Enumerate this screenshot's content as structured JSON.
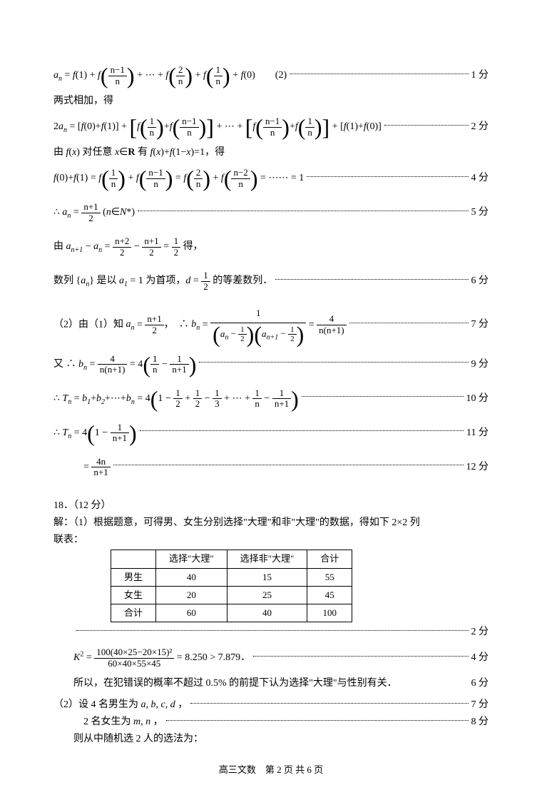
{
  "line1": {
    "pre": "aₙ = f(1) + f",
    "f1n": "n−1",
    "f1d": "n",
    "mid1": " + ⋯ + f",
    "f2n": "2",
    "f2d": "n",
    "mid2": " + f",
    "f3n": "1",
    "f3d": "n",
    "post": " + f(0)　　(2)",
    "score": "1 分"
  },
  "line2": "两式相加，得",
  "line3": {
    "pre": "2aₙ = [f(0)+f(1)] + ",
    "b1a_n": "1",
    "b1a_d": "n",
    "b1b_n": "n−1",
    "b1b_d": "n",
    "mid": " + ⋯ + ",
    "b2a_n": "n−1",
    "b2a_d": "n",
    "b2b_n": "1",
    "b2b_d": "n",
    "post": " + [f(1)+f(0)]",
    "score": "2 分"
  },
  "line4": {
    "pre": "由 f(x) 对任意 x∈",
    "bold": "R",
    "post": " 有 f(x)+f(1−x)=1，得"
  },
  "line5": {
    "pre": "f(0)+f(1) = f",
    "a_n": "1",
    "a_d": "n",
    "p1": " + f",
    "b_n": "n−1",
    "b_d": "n",
    "p2": " = f",
    "c_n": "2",
    "c_d": "n",
    "p3": " + f",
    "d_n": "n−2",
    "d_d": "n",
    "post": " = ⋯⋯ = 1",
    "score": "4 分"
  },
  "line6": {
    "pre": "∴ aₙ = ",
    "n": "n+1",
    "d": "2",
    "post": " (n∈N*)",
    "score": "5 分"
  },
  "line7": {
    "pre": "由 aₙ₊₁ − aₙ = ",
    "a_n": "n+2",
    "a_d": "2",
    "m": " − ",
    "b_n": "n+1",
    "b_d": "2",
    "e": " = ",
    "c_n": "1",
    "c_d": "2",
    "post": " 得，"
  },
  "line8": {
    "pre": "数列 {aₙ} 是以 a₁ = 1 为首项，d = ",
    "n": "1",
    "d": "2",
    "post": " 的等差数列．",
    "score": "6 分"
  },
  "line9": {
    "pre": "（2）由（1）知 aₙ = ",
    "a_n": "n+1",
    "a_d": "2",
    "mid": "，　∴ bₙ = ",
    "big_n": "1",
    "den_l_a": "aₙ − ",
    "den_l_n": "1",
    "den_l_d": "2",
    "den_r_a": "aₙ₊₁ − ",
    "den_r_n": "1",
    "den_r_d": "2",
    "eq": " = ",
    "r_n": "4",
    "r_d": "n(n+1)",
    "score": "7 分"
  },
  "line10": {
    "pre": "又 ∴ bₙ = ",
    "a_n": "4",
    "a_d": "n(n+1)",
    "mid": " = 4",
    "p_n1": "1",
    "p_d1": "n",
    "minus": " − ",
    "p_n2": "1",
    "p_d2": "n+1",
    "score": "9 分"
  },
  "line11": {
    "pre": "∴ Tₙ = b₁+b₂+⋯+bₙ = 4",
    "o": "1 − ",
    "f1n": "1",
    "f1d": "2",
    "p": " + ",
    "f2n": "1",
    "f2d": "2",
    "m": " − ",
    "f3n": "1",
    "f3d": "3",
    "c": " + ⋯ + ",
    "f4n": "1",
    "f4d": "n",
    "m2": " − ",
    "f5n": "1",
    "f5d": "n+1",
    "score": "10 分"
  },
  "line12": {
    "pre": "∴ Tₙ = 4",
    "o": "1 − ",
    "n": "1",
    "d": "n+1",
    "score": "11 分"
  },
  "line13": {
    "pre": "　　= ",
    "n": "4n",
    "d": "n+1",
    "score": "12 分"
  },
  "q18": {
    "num": "18．（12 分）"
  },
  "q18_line1": "解：（1）根据题意，可得男、女生分别选择\"大理\"和非\"大理\"的数据，得如下 2×2 列",
  "q18_line2": "联表：",
  "table": {
    "headers": [
      "",
      "选择\"大理\"",
      "选择非\"大理\"",
      "合计"
    ],
    "rows": [
      [
        "男生",
        "40",
        "15",
        "55"
      ],
      [
        "女生",
        "20",
        "25",
        "45"
      ],
      [
        "合计",
        "60",
        "40",
        "100"
      ]
    ]
  },
  "t_score": "2 分",
  "k2": {
    "pre": "K² = ",
    "num": "100(40×25−20×15)²",
    "den": "60×40×55×45",
    "post": " = 8.250 > 7.879．",
    "score": "4 分",
    "indent": "　　"
  },
  "k2_conc": {
    "pre": "　　所以，在犯错误的概率不超过 0.5% 的前提下认为选择\"大理\"与性别有关．",
    "score": "6 分"
  },
  "p2_1": {
    "pre": "（2）设 4 名男生为 a, b, c, d ，",
    "score": "7 分"
  },
  "p2_2": {
    "pre": "　　　2 名女生为 m, n ，",
    "score": "8 分"
  },
  "p2_3": "　　则从中随机选 2 人的选法为：",
  "footer": "高三文数　第 2 页 共 6 页"
}
